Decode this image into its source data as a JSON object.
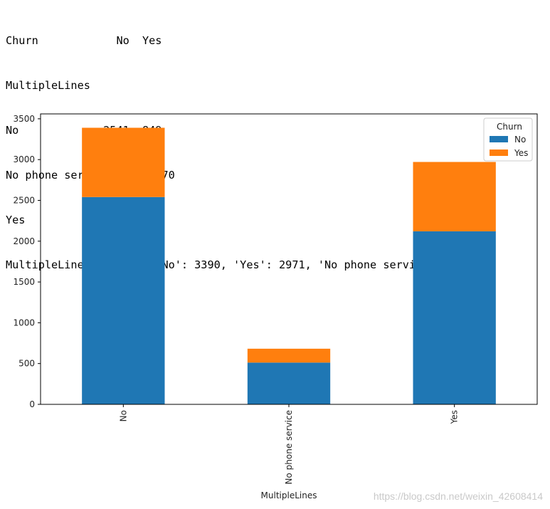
{
  "output_lines": [
    "Churn            No  Yes",
    "MultipleLines           ",
    "No             2541  849",
    "No phone service  512  170",
    "Yes            2121  850",
    "MultipleLines Counter({'No': 3390, 'Yes': 2971, 'No phone service': 682})"
  ],
  "watermark": "https://blog.csdn.net/weixin_42608414",
  "chart_data": {
    "type": "bar",
    "stacked": true,
    "categories": [
      "No",
      "No phone service",
      "Yes"
    ],
    "series": [
      {
        "name": "No",
        "values": [
          2541,
          512,
          2121
        ],
        "color": "#1f77b4"
      },
      {
        "name": "Yes",
        "values": [
          849,
          170,
          850
        ],
        "color": "#ff7f0e"
      }
    ],
    "xlabel": "MultipleLines",
    "ylabel": "",
    "ylim": [
      0,
      3560
    ],
    "yticks": [
      0,
      500,
      1000,
      1500,
      2000,
      2500,
      3000,
      3500
    ],
    "legend": {
      "title": "Churn",
      "placement": "top-right"
    },
    "grid": false
  }
}
